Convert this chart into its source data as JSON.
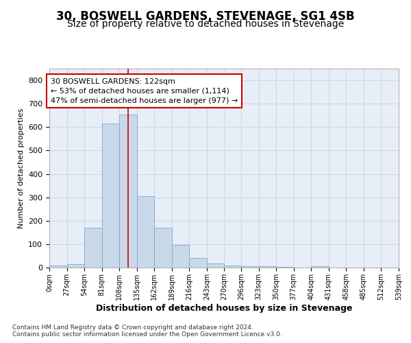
{
  "title": "30, BOSWELL GARDENS, STEVENAGE, SG1 4SB",
  "subtitle": "Size of property relative to detached houses in Stevenage",
  "xlabel": "Distribution of detached houses by size in Stevenage",
  "ylabel": "Number of detached properties",
  "bin_edges": [
    0,
    27,
    54,
    81,
    108,
    135,
    162,
    189,
    216,
    243,
    270,
    296,
    323,
    350,
    377,
    404,
    431,
    458,
    485,
    512,
    539
  ],
  "bar_heights": [
    8,
    15,
    170,
    615,
    655,
    305,
    170,
    97,
    42,
    17,
    10,
    7,
    5,
    2,
    0,
    5,
    0,
    0,
    0,
    0
  ],
  "bar_color": "#c9d9ea",
  "bar_edgecolor": "#7fa8cc",
  "property_line_x": 122,
  "property_line_color": "#cc0000",
  "annotation_line1": "30 BOSWELL GARDENS: 122sqm",
  "annotation_line2": "← 53% of detached houses are smaller (1,114)",
  "annotation_line3": "47% of semi-detached houses are larger (977) →",
  "annotation_box_edgecolor": "#cc0000",
  "annotation_box_facecolor": "#ffffff",
  "ylim": [
    0,
    850
  ],
  "yticks": [
    0,
    100,
    200,
    300,
    400,
    500,
    600,
    700,
    800
  ],
  "tick_labels": [
    "0sqm",
    "27sqm",
    "54sqm",
    "81sqm",
    "108sqm",
    "135sqm",
    "162sqm",
    "189sqm",
    "216sqm",
    "243sqm",
    "270sqm",
    "296sqm",
    "323sqm",
    "350sqm",
    "377sqm",
    "404sqm",
    "431sqm",
    "458sqm",
    "485sqm",
    "512sqm",
    "539sqm"
  ],
  "footer_line1": "Contains HM Land Registry data © Crown copyright and database right 2024.",
  "footer_line2": "Contains public sector information licensed under the Open Government Licence v3.0.",
  "grid_color": "#d0d8e8",
  "background_color": "#e8eef8",
  "title_fontsize": 12,
  "subtitle_fontsize": 10
}
